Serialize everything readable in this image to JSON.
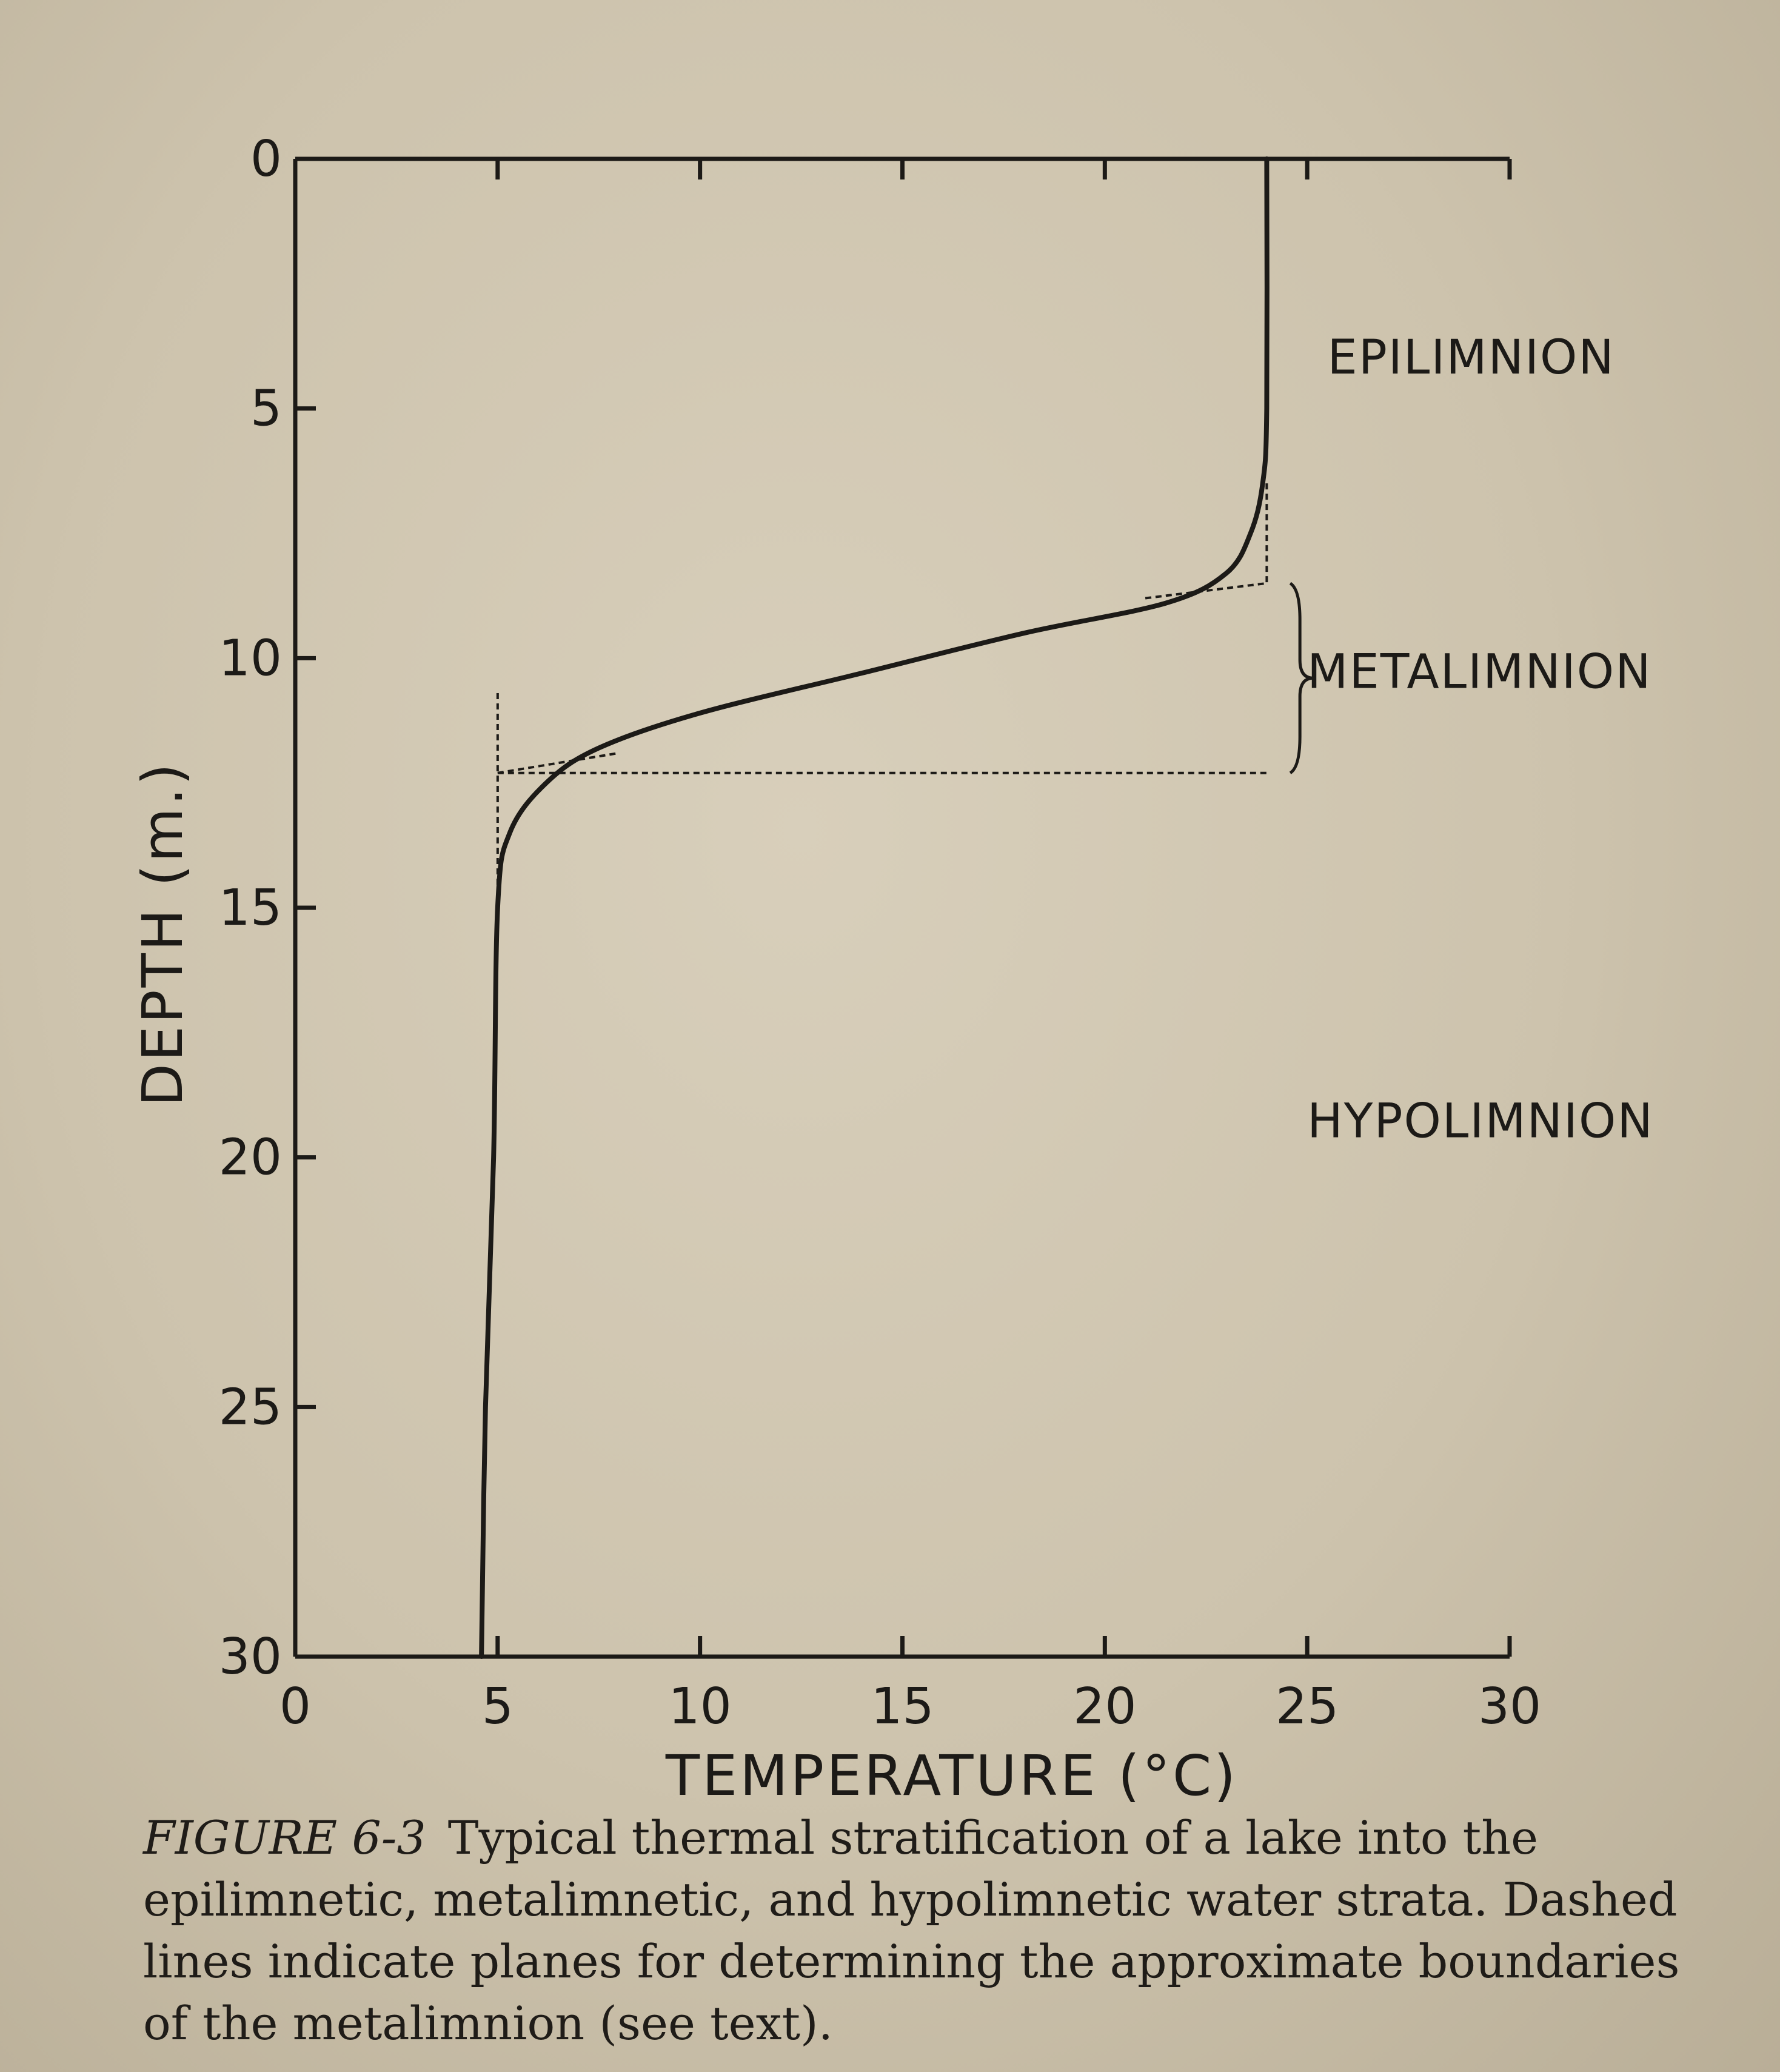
{
  "chart_data": {
    "type": "line",
    "xlabel": "TEMPERATURE (°C)",
    "ylabel": "DEPTH (m.)",
    "x_ticks": [
      0,
      5,
      10,
      15,
      20,
      25,
      30
    ],
    "y_ticks": [
      0,
      5,
      10,
      15,
      20,
      25,
      30
    ],
    "xlim": [
      0,
      30
    ],
    "ylim": [
      30,
      0
    ],
    "y_inverted": true,
    "grid": false,
    "series": [
      {
        "style": "solid",
        "points": [
          {
            "temp": 24.0,
            "depth": 0
          },
          {
            "temp": 24.0,
            "depth": 5
          },
          {
            "temp": 23.9,
            "depth": 6.5
          },
          {
            "temp": 23.6,
            "depth": 7.5
          },
          {
            "temp": 23.0,
            "depth": 8.3
          },
          {
            "temp": 21.5,
            "depth": 8.9
          },
          {
            "temp": 18.0,
            "depth": 9.5
          },
          {
            "temp": 14.0,
            "depth": 10.3
          },
          {
            "temp": 10.0,
            "depth": 11.1
          },
          {
            "temp": 7.5,
            "depth": 11.8
          },
          {
            "temp": 6.2,
            "depth": 12.5
          },
          {
            "temp": 5.3,
            "depth": 13.5
          },
          {
            "temp": 5.0,
            "depth": 15
          },
          {
            "temp": 4.9,
            "depth": 20
          },
          {
            "temp": 4.7,
            "depth": 25
          },
          {
            "temp": 4.6,
            "depth": 30
          }
        ]
      }
    ],
    "boundary_lines": [
      {
        "style": "dashed",
        "x": [
          24.0,
          24.0
        ],
        "y": [
          6.5,
          8.5
        ]
      },
      {
        "style": "dashed",
        "x": [
          21.0,
          24.0
        ],
        "y": [
          8.8,
          8.5
        ]
      },
      {
        "style": "dashed",
        "x": [
          5.0,
          24.0
        ],
        "y": [
          12.3,
          12.3
        ]
      },
      {
        "style": "dashed",
        "x": [
          5.0,
          5.0
        ],
        "y": [
          10.7,
          15.5
        ]
      },
      {
        "style": "dashed",
        "x": [
          5.0,
          8.0
        ],
        "y": [
          12.3,
          11.9
        ]
      }
    ],
    "bracket": {
      "x": 24.7,
      "y": [
        8.5,
        12.3
      ]
    },
    "zones": [
      {
        "label": "EPILIMNION",
        "temp": 25.5,
        "depth": 4.3
      },
      {
        "label": "METALIMNION",
        "temp": 25.0,
        "depth": 10.6
      },
      {
        "label": "HYPOLIMNION",
        "temp": 25.0,
        "depth": 19.6
      }
    ]
  },
  "caption": {
    "figure_number": "FIGURE 6-3",
    "text": "Typical thermal stratification of a lake into the epilimnetic, metalimnetic, and hypolimnetic water strata. Dashed lines indicate planes for determining the approximate boundaries of the metalimnion (see text)."
  }
}
